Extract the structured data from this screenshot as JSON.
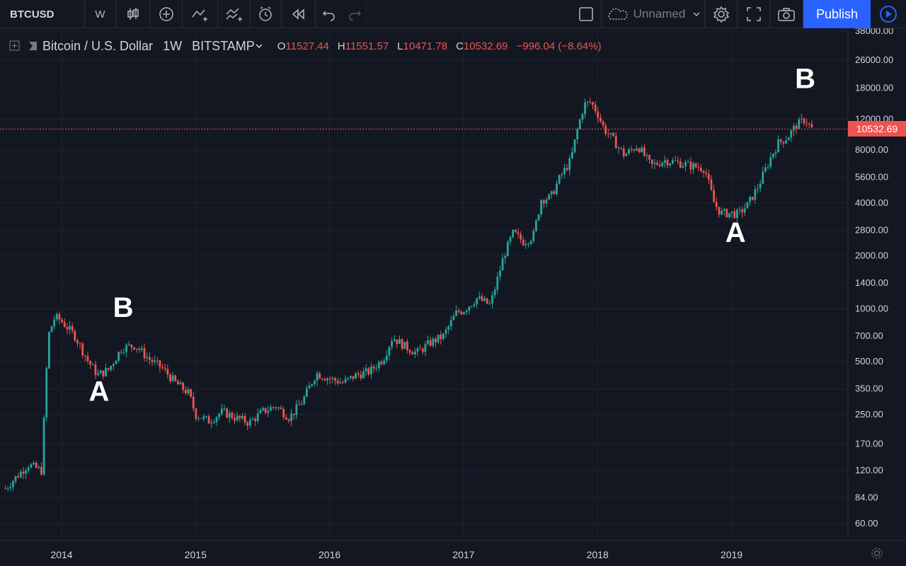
{
  "toolbar": {
    "symbol": "BTCUSD",
    "interval": "W",
    "layout_name": "Unnamed",
    "publish_label": "Publish"
  },
  "legend": {
    "title": "Bitcoin / U.S. Dollar",
    "timeframe": "1W",
    "exchange": "BITSTAMP",
    "o_key": "O",
    "o_val": "11527.44",
    "h_key": "H",
    "h_val": "11551.57",
    "l_key": "L",
    "l_val": "10471.78",
    "c_key": "C",
    "c_val": "10532.69",
    "change": "−996.04 (−8.64%)"
  },
  "last_price_label": "10532.69",
  "colors": {
    "background": "#131722",
    "up": "#26a69a",
    "down": "#ef5350",
    "accent": "#2962ff",
    "grid": "#1f2330"
  },
  "icons": [
    "candles-icon",
    "add-indicator-icon",
    "compare-icon",
    "indicators-icon",
    "alert-icon",
    "replay-icon",
    "undo-icon",
    "redo-icon",
    "fullscreen-icon",
    "settings-icon",
    "camera-icon",
    "play-icon"
  ],
  "annotations": [
    {
      "text": "A",
      "date": "2014.28",
      "price": 300
    },
    {
      "text": "B",
      "date": "2014.46",
      "price": 900
    },
    {
      "text": "A",
      "date": "2019.03",
      "price": 2400
    },
    {
      "text": "B",
      "date": "2019.55",
      "price": 18000
    }
  ],
  "chart_data": {
    "type": "candlestick",
    "title": "Bitcoin / U.S. Dollar",
    "scale": "log",
    "ylim": [
      50,
      38000
    ],
    "xlim": [
      "2013-07",
      "2019-08"
    ],
    "x_tick_labels": [
      "2014",
      "2015",
      "2016",
      "2017",
      "2018",
      "2019"
    ],
    "y_tick_labels": [
      "38000.00",
      "26000.00",
      "18000.00",
      "12000.00",
      "8000.00",
      "5600.00",
      "4000.00",
      "2800.00",
      "2000.00",
      "1400.00",
      "1000.00",
      "700.00",
      "500.00",
      "350.00",
      "250.00",
      "170.00",
      "120.00",
      "84.00",
      "60.00"
    ],
    "grid": true,
    "series": [
      {
        "x": [
          2013.58,
          2013.75,
          2013.85,
          2013.9,
          2013.95,
          2014.0,
          2014.1,
          2014.2,
          2014.27,
          2014.35,
          2014.45,
          2014.55,
          2014.65,
          2014.75,
          2014.85,
          2014.95,
          2015.0,
          2015.1,
          2015.2,
          2015.3,
          2015.4,
          2015.5,
          2015.6,
          2015.7,
          2015.8,
          2015.9,
          2016.0,
          2016.1,
          2016.2,
          2016.3,
          2016.4,
          2016.47,
          2016.55,
          2016.65,
          2016.75,
          2016.85,
          2016.95,
          2017.0,
          2017.1,
          2017.2,
          2017.3,
          2017.37,
          2017.45,
          2017.52,
          2017.58,
          2017.65,
          2017.72,
          2017.8,
          2017.85,
          2017.9,
          2017.95,
          2018.0,
          2018.05,
          2018.1,
          2018.2,
          2018.3,
          2018.4,
          2018.5,
          2018.6,
          2018.7,
          2018.8,
          2018.87,
          2018.92,
          2019.0,
          2019.05,
          2019.12,
          2019.2,
          2019.3,
          2019.35,
          2019.42,
          2019.48,
          2019.55,
          2019.6
        ],
        "y": [
          95,
          130,
          120,
          700,
          900,
          850,
          700,
          500,
          420,
          450,
          600,
          620,
          520,
          460,
          380,
          330,
          250,
          230,
          260,
          240,
          225,
          260,
          280,
          240,
          300,
          430,
          400,
          380,
          420,
          440,
          520,
          690,
          620,
          560,
          640,
          700,
          960,
          980,
          1150,
          1050,
          2000,
          2700,
          2400,
          2600,
          4200,
          4300,
          5600,
          7000,
          10500,
          14500,
          15000,
          13000,
          10500,
          9500,
          7500,
          8500,
          6500,
          7000,
          6800,
          6500,
          6300,
          4000,
          3500,
          3500,
          3450,
          3900,
          5000,
          7500,
          8800,
          9500,
          11000,
          12000,
          10532
        ]
      }
    ]
  }
}
